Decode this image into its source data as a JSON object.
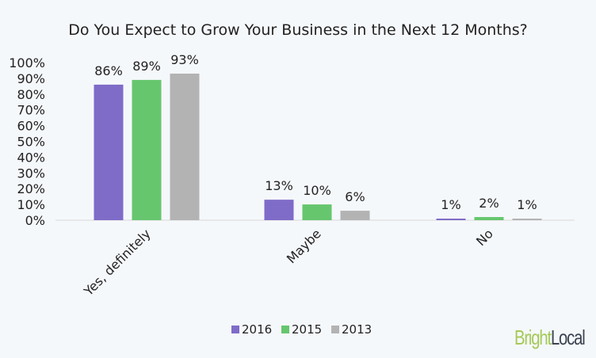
{
  "chart_data": {
    "type": "bar",
    "title": "Do You Expect to Grow Your Business in the Next 12 Months?",
    "categories": [
      "Yes, definitely",
      "Maybe",
      "No"
    ],
    "series": [
      {
        "name": "2016",
        "values": [
          86,
          13,
          1
        ],
        "labels": [
          "86%",
          "13%",
          "1%"
        ],
        "color": "#7f6cc8"
      },
      {
        "name": "2015",
        "values": [
          89,
          10,
          2
        ],
        "labels": [
          "89%",
          "10%",
          "2%"
        ],
        "color": "#66c66e"
      },
      {
        "name": "2013",
        "values": [
          93,
          6,
          1
        ],
        "labels": [
          "93%",
          "6%",
          "1%"
        ],
        "color": "#b3b3b3"
      }
    ],
    "ylim": [
      0,
      100
    ],
    "yticks": [
      "0%",
      "10%",
      "20%",
      "30%",
      "40%",
      "50%",
      "60%",
      "70%",
      "80%",
      "90%",
      "100%"
    ],
    "grid": false,
    "legend": "bottom"
  },
  "logo": {
    "part1": "Bright",
    "part2": "Local"
  }
}
